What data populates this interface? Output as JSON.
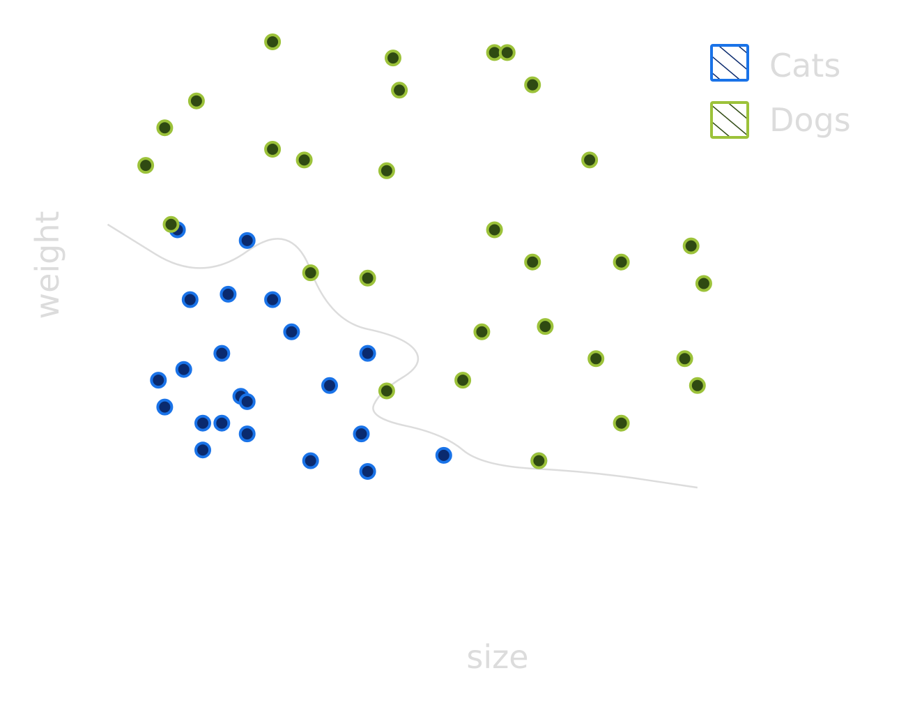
{
  "chart_data": {
    "type": "scatter",
    "title": "",
    "xlabel": "size",
    "ylabel": "weight",
    "xlim": [
      0,
      100
    ],
    "ylim": [
      0,
      100
    ],
    "grid": false,
    "legend_position": "top-right",
    "series": [
      {
        "name": "Cats",
        "color": "#1a73e8",
        "fill": "#0a2a6e",
        "points": [
          [
            6,
            65
          ],
          [
            17,
            63
          ],
          [
            8,
            52
          ],
          [
            14,
            53
          ],
          [
            21,
            52
          ],
          [
            24,
            46
          ],
          [
            13,
            42
          ],
          [
            36,
            42
          ],
          [
            7,
            39
          ],
          [
            3,
            37
          ],
          [
            30,
            36
          ],
          [
            16,
            34
          ],
          [
            17,
            33
          ],
          [
            4,
            32
          ],
          [
            10,
            29
          ],
          [
            13,
            29
          ],
          [
            17,
            27
          ],
          [
            35,
            27
          ],
          [
            48,
            23
          ],
          [
            10,
            24
          ],
          [
            27,
            22
          ],
          [
            36,
            20
          ],
          [
            63,
            22
          ]
        ]
      },
      {
        "name": "Dogs",
        "color": "#9cc23a",
        "fill": "#2f4a12",
        "points": [
          [
            21,
            100
          ],
          [
            9,
            89
          ],
          [
            4,
            84
          ],
          [
            56,
            98
          ],
          [
            62,
            92
          ],
          [
            40,
            97
          ],
          [
            58,
            98
          ],
          [
            41,
            91
          ],
          [
            21,
            80
          ],
          [
            26,
            78
          ],
          [
            1,
            77
          ],
          [
            39,
            76
          ],
          [
            71,
            78
          ],
          [
            5,
            66
          ],
          [
            56,
            65
          ],
          [
            27,
            57
          ],
          [
            36,
            56
          ],
          [
            62,
            59
          ],
          [
            76,
            59
          ],
          [
            87,
            62
          ],
          [
            89,
            55
          ],
          [
            64,
            47
          ],
          [
            54,
            46
          ],
          [
            72,
            41
          ],
          [
            86,
            41
          ],
          [
            51,
            37
          ],
          [
            39,
            35
          ],
          [
            88,
            36
          ],
          [
            76,
            29
          ],
          [
            63,
            22
          ]
        ]
      }
    ],
    "boundary": [
      [
        -5,
        66
      ],
      [
        10,
        55
      ],
      [
        24,
        67
      ],
      [
        30,
        48
      ],
      [
        42,
        45
      ],
      [
        45,
        40
      ],
      [
        38,
        35
      ],
      [
        36,
        30
      ],
      [
        48,
        27
      ],
      [
        54,
        21
      ],
      [
        71,
        20
      ],
      [
        88,
        17
      ]
    ]
  }
}
